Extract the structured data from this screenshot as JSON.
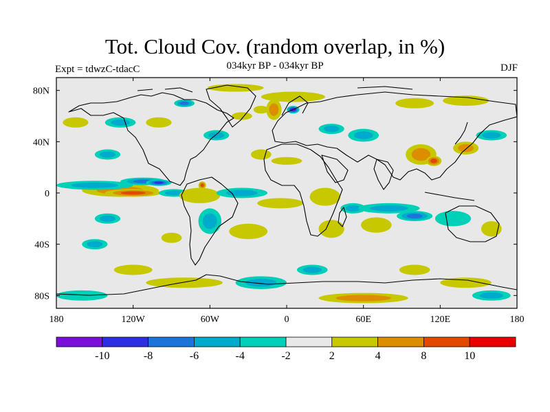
{
  "title": "Tot. Cloud Cov. (random overlap, in %)",
  "experiment_label": "Expt = tdwzC-tdacC",
  "period_label": "034kyr BP - 034kyr BP",
  "season_label": "DJF",
  "map": {
    "projection": "cylindrical-equidistant",
    "lon_range": [
      -180,
      180
    ],
    "lat_range": [
      -90,
      90
    ],
    "background_color": "#e8e8e8",
    "lat_ticks": [
      {
        "lat": 80,
        "label": "80N"
      },
      {
        "lat": 40,
        "label": "40N"
      },
      {
        "lat": 0,
        "label": "0"
      },
      {
        "lat": -40,
        "label": "40S"
      },
      {
        "lat": -80,
        "label": "80S"
      }
    ],
    "lon_ticks": [
      {
        "lon": -180,
        "label": "180"
      },
      {
        "lon": -120,
        "label": "120W"
      },
      {
        "lon": -60,
        "label": "60W"
      },
      {
        "lon": 0,
        "label": "0"
      },
      {
        "lon": 60,
        "label": "60E"
      },
      {
        "lon": 120,
        "label": "120E"
      },
      {
        "lon": 180,
        "label": "180"
      }
    ]
  },
  "colorbar": {
    "bins": [
      {
        "color": "#7a10d8"
      },
      {
        "color": "#2d2ee0"
      },
      {
        "color": "#1a74da"
      },
      {
        "color": "#00aacd"
      },
      {
        "color": "#00d0b8"
      },
      {
        "color": "#e8e8e8"
      },
      {
        "color": "#c8c800"
      },
      {
        "color": "#dc8e00"
      },
      {
        "color": "#e04a00"
      },
      {
        "color": "#e80000"
      }
    ],
    "labels": [
      "-10",
      "-8",
      "-6",
      "-4",
      "-2",
      "2",
      "4",
      "8",
      "10"
    ]
  },
  "anomalies": [
    {
      "lon": -130,
      "lat": 2,
      "rx": 30,
      "ry": 5,
      "level": 2
    },
    {
      "lon": -120,
      "lat": 0,
      "rx": 22,
      "ry": 3,
      "level": 3
    },
    {
      "lon": -150,
      "lat": 6,
      "rx": 30,
      "ry": 3.5,
      "level": -2
    },
    {
      "lon": -112,
      "lat": 9,
      "rx": 18,
      "ry": 3,
      "level": -3
    },
    {
      "lon": -100,
      "lat": 8,
      "rx": 10,
      "ry": 2.5,
      "level": -4
    },
    {
      "lon": -88,
      "lat": 0,
      "rx": 12,
      "ry": 3,
      "level": -2
    },
    {
      "lon": -68,
      "lat": -2,
      "rx": 16,
      "ry": 6,
      "level": 1
    },
    {
      "lon": -66,
      "lat": 6,
      "rx": 3,
      "ry": 3,
      "level": 3
    },
    {
      "lon": -35,
      "lat": 0,
      "rx": 20,
      "ry": 4,
      "level": -2
    },
    {
      "lon": -60,
      "lat": -22,
      "rx": 9,
      "ry": 10,
      "level": -2
    },
    {
      "lon": -5,
      "lat": -8,
      "rx": 18,
      "ry": 4,
      "level": 1
    },
    {
      "lon": 30,
      "lat": -3,
      "rx": 12,
      "ry": 7,
      "level": 1
    },
    {
      "lon": 52,
      "lat": -12,
      "rx": 10,
      "ry": 4,
      "level": -2
    },
    {
      "lon": 80,
      "lat": -12,
      "rx": 24,
      "ry": 4,
      "level": -2
    },
    {
      "lon": 100,
      "lat": -18,
      "rx": 14,
      "ry": 4,
      "level": -3
    },
    {
      "lon": 130,
      "lat": -20,
      "rx": 14,
      "ry": 6,
      "level": -1
    },
    {
      "lon": 160,
      "lat": -28,
      "rx": 8,
      "ry": 6,
      "level": 1
    },
    {
      "lon": 35,
      "lat": -28,
      "rx": 10,
      "ry": 7,
      "level": 1
    },
    {
      "lon": 70,
      "lat": -25,
      "rx": 12,
      "ry": 6,
      "level": 1
    },
    {
      "lon": -140,
      "lat": -20,
      "rx": 10,
      "ry": 4,
      "level": -2
    },
    {
      "lon": -150,
      "lat": -40,
      "rx": 10,
      "ry": 4,
      "level": -2
    },
    {
      "lon": -30,
      "lat": -30,
      "rx": 15,
      "ry": 6,
      "level": 1
    },
    {
      "lon": -90,
      "lat": -35,
      "rx": 8,
      "ry": 4,
      "level": 1
    },
    {
      "lon": 5,
      "lat": 75,
      "rx": 25,
      "ry": 4,
      "level": 1
    },
    {
      "lon": -20,
      "lat": 65,
      "rx": 6,
      "ry": 3,
      "level": 1
    },
    {
      "lon": -40,
      "lat": 82,
      "rx": 22,
      "ry": 3,
      "level": 1
    },
    {
      "lon": -10,
      "lat": 65,
      "rx": 6,
      "ry": 8,
      "level": 2
    },
    {
      "lon": 5,
      "lat": 65,
      "rx": 5,
      "ry": 3,
      "level": -5
    },
    {
      "lon": 100,
      "lat": 70,
      "rx": 15,
      "ry": 4,
      "level": 1
    },
    {
      "lon": 140,
      "lat": 72,
      "rx": 18,
      "ry": 4,
      "level": 1
    },
    {
      "lon": 60,
      "lat": 45,
      "rx": 12,
      "ry": 5,
      "level": -2
    },
    {
      "lon": 35,
      "lat": 50,
      "rx": 10,
      "ry": 4,
      "level": -2
    },
    {
      "lon": 105,
      "lat": 30,
      "rx": 12,
      "ry": 8,
      "level": 2
    },
    {
      "lon": 115,
      "lat": 25,
      "rx": 6,
      "ry": 4,
      "level": 3
    },
    {
      "lon": 140,
      "lat": 35,
      "rx": 10,
      "ry": 5,
      "level": 2
    },
    {
      "lon": 160,
      "lat": 45,
      "rx": 12,
      "ry": 4,
      "level": -2
    },
    {
      "lon": -130,
      "lat": 55,
      "rx": 12,
      "ry": 4,
      "level": -2
    },
    {
      "lon": -100,
      "lat": 55,
      "rx": 10,
      "ry": 4,
      "level": 1
    },
    {
      "lon": -80,
      "lat": 70,
      "rx": 8,
      "ry": 3,
      "level": -3
    },
    {
      "lon": -55,
      "lat": 45,
      "rx": 10,
      "ry": 4,
      "level": -2
    },
    {
      "lon": -35,
      "lat": 60,
      "rx": 8,
      "ry": 3,
      "level": 1
    },
    {
      "lon": -165,
      "lat": 55,
      "rx": 10,
      "ry": 4,
      "level": 1
    },
    {
      "lon": 0,
      "lat": 25,
      "rx": 12,
      "ry": 3,
      "level": 1
    },
    {
      "lon": -20,
      "lat": 30,
      "rx": 8,
      "ry": 4,
      "level": 1
    },
    {
      "lon": -140,
      "lat": 30,
      "rx": 10,
      "ry": 4,
      "level": -2
    },
    {
      "lon": -80,
      "lat": -70,
      "rx": 30,
      "ry": 4,
      "level": 1
    },
    {
      "lon": -20,
      "lat": -70,
      "rx": 20,
      "ry": 5,
      "level": -2
    },
    {
      "lon": 60,
      "lat": -82,
      "rx": 35,
      "ry": 4,
      "level": 2
    },
    {
      "lon": 140,
      "lat": -70,
      "rx": 20,
      "ry": 4,
      "level": 1
    },
    {
      "lon": -160,
      "lat": -80,
      "rx": 20,
      "ry": 4,
      "level": -1
    },
    {
      "lon": -120,
      "lat": -60,
      "rx": 15,
      "ry": 4,
      "level": 1
    },
    {
      "lon": 20,
      "lat": -60,
      "rx": 12,
      "ry": 4,
      "level": -2
    },
    {
      "lon": 100,
      "lat": -60,
      "rx": 12,
      "ry": 4,
      "level": 1
    },
    {
      "lon": 160,
      "lat": -80,
      "rx": 15,
      "ry": 4,
      "level": -2
    }
  ]
}
